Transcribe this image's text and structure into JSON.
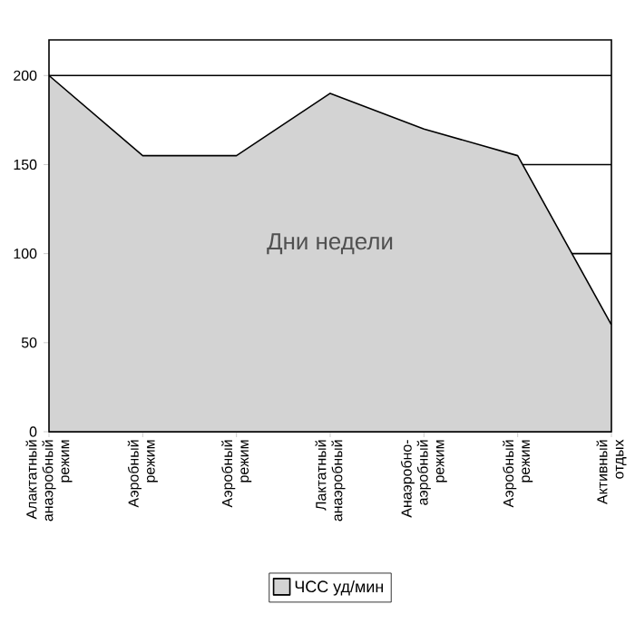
{
  "chart_data": {
    "type": "area",
    "xlabel": "Дни недели",
    "categories": [
      "Алактатный анаэробный режим",
      "Аэробный режим",
      "Аэробный режим",
      "Лактатный анаэробный",
      "Анаэробно-аэробный режим",
      "Аэробный режим",
      "Активный отдых"
    ],
    "series": [
      {
        "name": "ЧСС уд/мин",
        "color": "#d3d3d3",
        "values": [
          200,
          155,
          155,
          190,
          170,
          155,
          60
        ]
      }
    ],
    "ylim": [
      0,
      220
    ],
    "yticks": [
      0,
      50,
      100,
      150,
      200
    ],
    "grid": "y",
    "legend": "bottom"
  }
}
